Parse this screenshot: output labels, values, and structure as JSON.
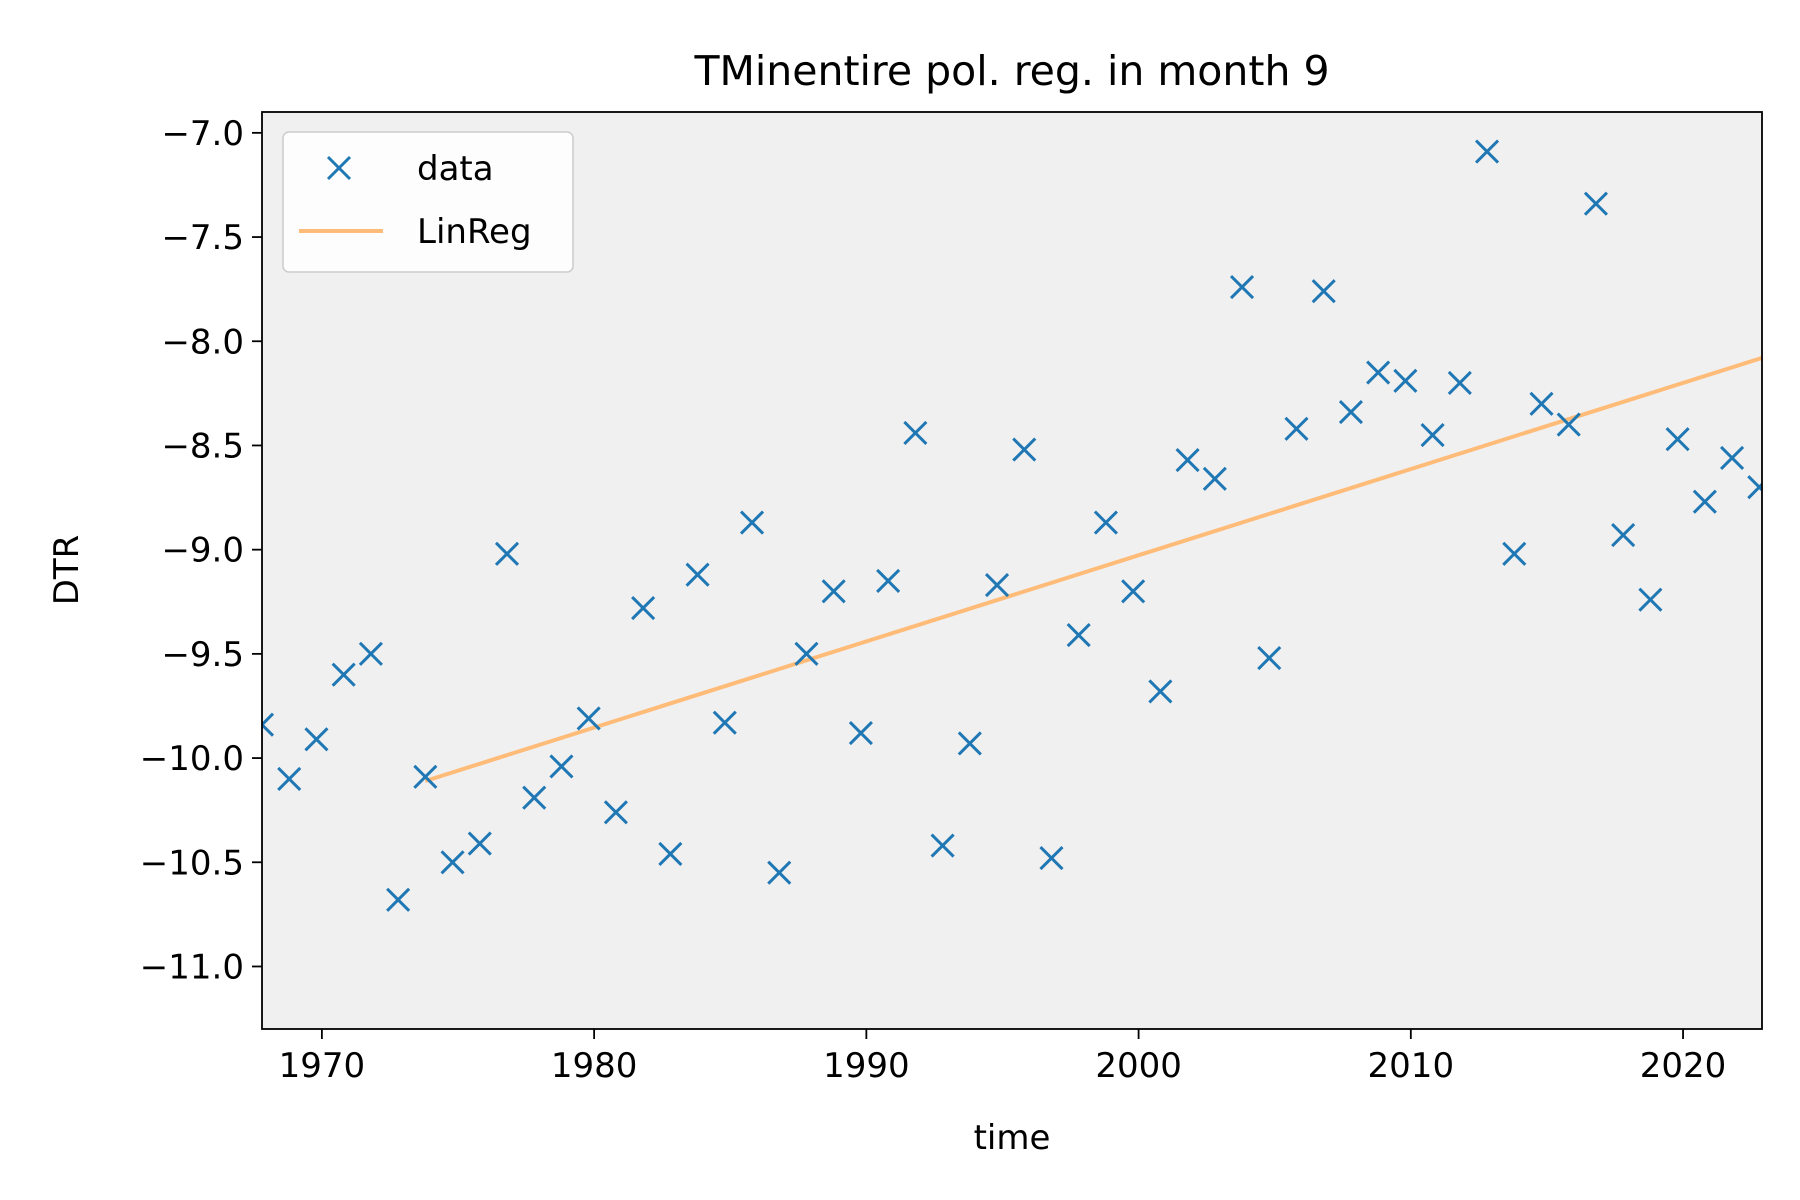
{
  "chart_data": {
    "type": "scatter",
    "title": "TMinentire pol. reg. in month 9",
    "xlabel": "time",
    "ylabel": "DTR",
    "xlim": [
      1967.8,
      2022.9
    ],
    "ylim": [
      -11.3,
      -6.9
    ],
    "xticks": [
      1970,
      1980,
      1990,
      2000,
      2010,
      2020
    ],
    "xtick_labels": [
      "1970",
      "1980",
      "1990",
      "2000",
      "2010",
      "2020"
    ],
    "yticks": [
      -7.0,
      -7.5,
      -8.0,
      -8.5,
      -9.0,
      -9.5,
      -10.0,
      -10.5,
      -11.0
    ],
    "ytick_labels": [
      "−7.0",
      "−7.5",
      "−8.0",
      "−8.5",
      "−9.0",
      "−9.5",
      "−10.0",
      "−10.5",
      "−11.0"
    ],
    "grid": false,
    "legend": {
      "placement": "upper-left",
      "entries": [
        "data",
        "LinReg"
      ]
    },
    "background_color": "#f0f0f0",
    "series": [
      {
        "name": "data",
        "type": "scatter",
        "marker": "x",
        "color": "#1f77b4",
        "x": [
          1967.8,
          1968.8,
          1969.8,
          1970.8,
          1971.8,
          1972.8,
          1973.8,
          1974.8,
          1975.8,
          1976.8,
          1977.8,
          1978.8,
          1979.8,
          1980.8,
          1981.8,
          1982.8,
          1983.8,
          1984.8,
          1985.8,
          1986.8,
          1987.8,
          1988.8,
          1989.8,
          1990.8,
          1991.8,
          1992.8,
          1993.8,
          1994.8,
          1995.8,
          1996.8,
          1997.8,
          1998.8,
          1999.8,
          2000.8,
          2001.8,
          2002.8,
          2003.8,
          2004.8,
          2005.8,
          2006.8,
          2007.8,
          2008.8,
          2009.8,
          2010.8,
          2011.8,
          2012.8,
          2013.8,
          2014.8,
          2015.8,
          2016.8,
          2017.8,
          2018.8,
          2019.8,
          2020.8,
          2021.8,
          2022.8
        ],
        "y": [
          -9.84,
          -10.1,
          -9.91,
          -9.6,
          -9.5,
          -10.68,
          -10.09,
          -10.5,
          -10.41,
          -9.02,
          -10.19,
          -10.04,
          -9.81,
          -10.26,
          -9.28,
          -10.46,
          -9.12,
          -9.83,
          -8.87,
          -10.55,
          -9.5,
          -9.2,
          -9.88,
          -9.15,
          -8.44,
          -10.42,
          -9.93,
          -9.17,
          -8.52,
          -10.48,
          -9.41,
          -8.87,
          -9.2,
          -9.68,
          -8.57,
          -8.66,
          -7.74,
          -9.52,
          -8.42,
          -7.76,
          -8.34,
          -8.15,
          -8.19,
          -8.45,
          -8.2,
          -7.09,
          -9.02,
          -8.3,
          -8.4,
          -7.34,
          -8.93,
          -9.24,
          -8.47,
          -8.77,
          -8.56,
          -8.7
        ]
      },
      {
        "name": "LinReg",
        "type": "line",
        "color": "#ffbb78",
        "x": [
          1973.8,
          2022.9
        ],
        "y": [
          -10.11,
          -8.08
        ]
      }
    ]
  }
}
